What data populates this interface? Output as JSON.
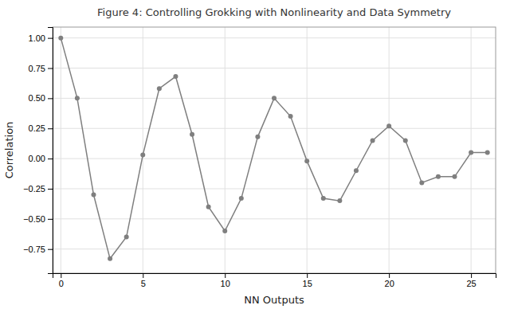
{
  "chart_data": {
    "type": "line",
    "title": "Figure 4: Controlling Grokking with Nonlinearity and Data Symmetry",
    "xlabel": "NN Outputs",
    "ylabel": "Correlation",
    "x": [
      0,
      1,
      2,
      3,
      4,
      5,
      6,
      7,
      8,
      9,
      10,
      11,
      12,
      13,
      14,
      15,
      16,
      17,
      18,
      19,
      20,
      21,
      22,
      23,
      24,
      25,
      26
    ],
    "values": [
      1.0,
      0.5,
      -0.3,
      -0.83,
      -0.65,
      0.03,
      0.58,
      0.68,
      0.2,
      -0.4,
      -0.6,
      -0.33,
      0.18,
      0.5,
      0.35,
      -0.02,
      -0.33,
      -0.35,
      -0.1,
      0.15,
      0.27,
      0.15,
      -0.2,
      -0.15,
      -0.15,
      0.05,
      0.05
    ],
    "color": "#7f7f7f",
    "marker": "circle",
    "grid": true,
    "xlim": [
      -0.5,
      26.5
    ],
    "ylim": [
      -0.95,
      1.09
    ],
    "xticks": [
      0,
      5,
      10,
      15,
      20,
      25
    ],
    "yticks": [
      {
        "value": -0.75,
        "label": "−0.75"
      },
      {
        "value": -0.5,
        "label": "−0.50"
      },
      {
        "value": -0.25,
        "label": "−0.25"
      },
      {
        "value": 0.0,
        "label": "0.00"
      },
      {
        "value": 0.25,
        "label": "0.25"
      },
      {
        "value": 0.5,
        "label": "0.50"
      },
      {
        "value": 0.75,
        "label": "0.75"
      },
      {
        "value": 1.0,
        "label": "1.00"
      }
    ]
  }
}
